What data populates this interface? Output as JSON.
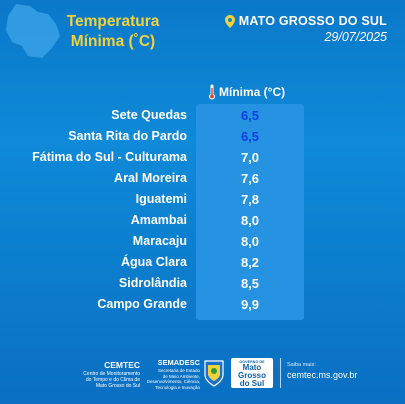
{
  "header": {
    "title_line1": "Temperatura",
    "title_line2": "Mínima (˚C)",
    "location": "MATO GROSSO DO SUL",
    "date": "29/07/2025"
  },
  "table": {
    "column_header": "Mínima (°C)",
    "rows": [
      {
        "city": "Sete Quedas",
        "value": "6,5"
      },
      {
        "city": "Santa Rita do Pardo",
        "value": "6,5"
      },
      {
        "city": "Fátima do Sul - Culturama",
        "value": "7,0"
      },
      {
        "city": "Aral Moreira",
        "value": "7,6"
      },
      {
        "city": "Iguatemi",
        "value": "7,8"
      },
      {
        "city": "Amambai",
        "value": "8,0"
      },
      {
        "city": "Maracaju",
        "value": "8,0"
      },
      {
        "city": "Água Clara",
        "value": "8,2"
      },
      {
        "city": "Sidrolândia",
        "value": "8,5"
      },
      {
        "city": "Campo Grande",
        "value": "9,9"
      }
    ]
  },
  "footer": {
    "cemtec_name": "CEMTEC",
    "cemtec_desc1": "Centro de Monitoramento",
    "cemtec_desc2": "do Tempo e do Clima de",
    "cemtec_desc3": "Mato Grosso do Sul",
    "semadesc_name": "SEMADESC",
    "semadesc_desc1": "Secretaria de Estado",
    "semadesc_desc2": "de Meio Ambiente,",
    "semadesc_desc3": "Desenvolvimento, Ciência,",
    "semadesc_desc4": "Tecnologia e Inovação",
    "gov_top": "GOVERNO DE",
    "gov_line1": "Mato",
    "gov_line2": "Grosso",
    "gov_line3": "do Sul",
    "site_label": "Saiba mais:",
    "site_url": "cemtec.ms.gov.br"
  },
  "colors": {
    "background": "#0e8ad8",
    "title_yellow": "#f2d23a",
    "value_panel": "#2592e2",
    "lowest_value": "#0f3ee2"
  },
  "icons": {
    "state_map": "ms-state-map-icon",
    "pin": "location-pin-icon",
    "thermometer": "thermometer-icon",
    "emblem": "state-emblem-icon"
  }
}
